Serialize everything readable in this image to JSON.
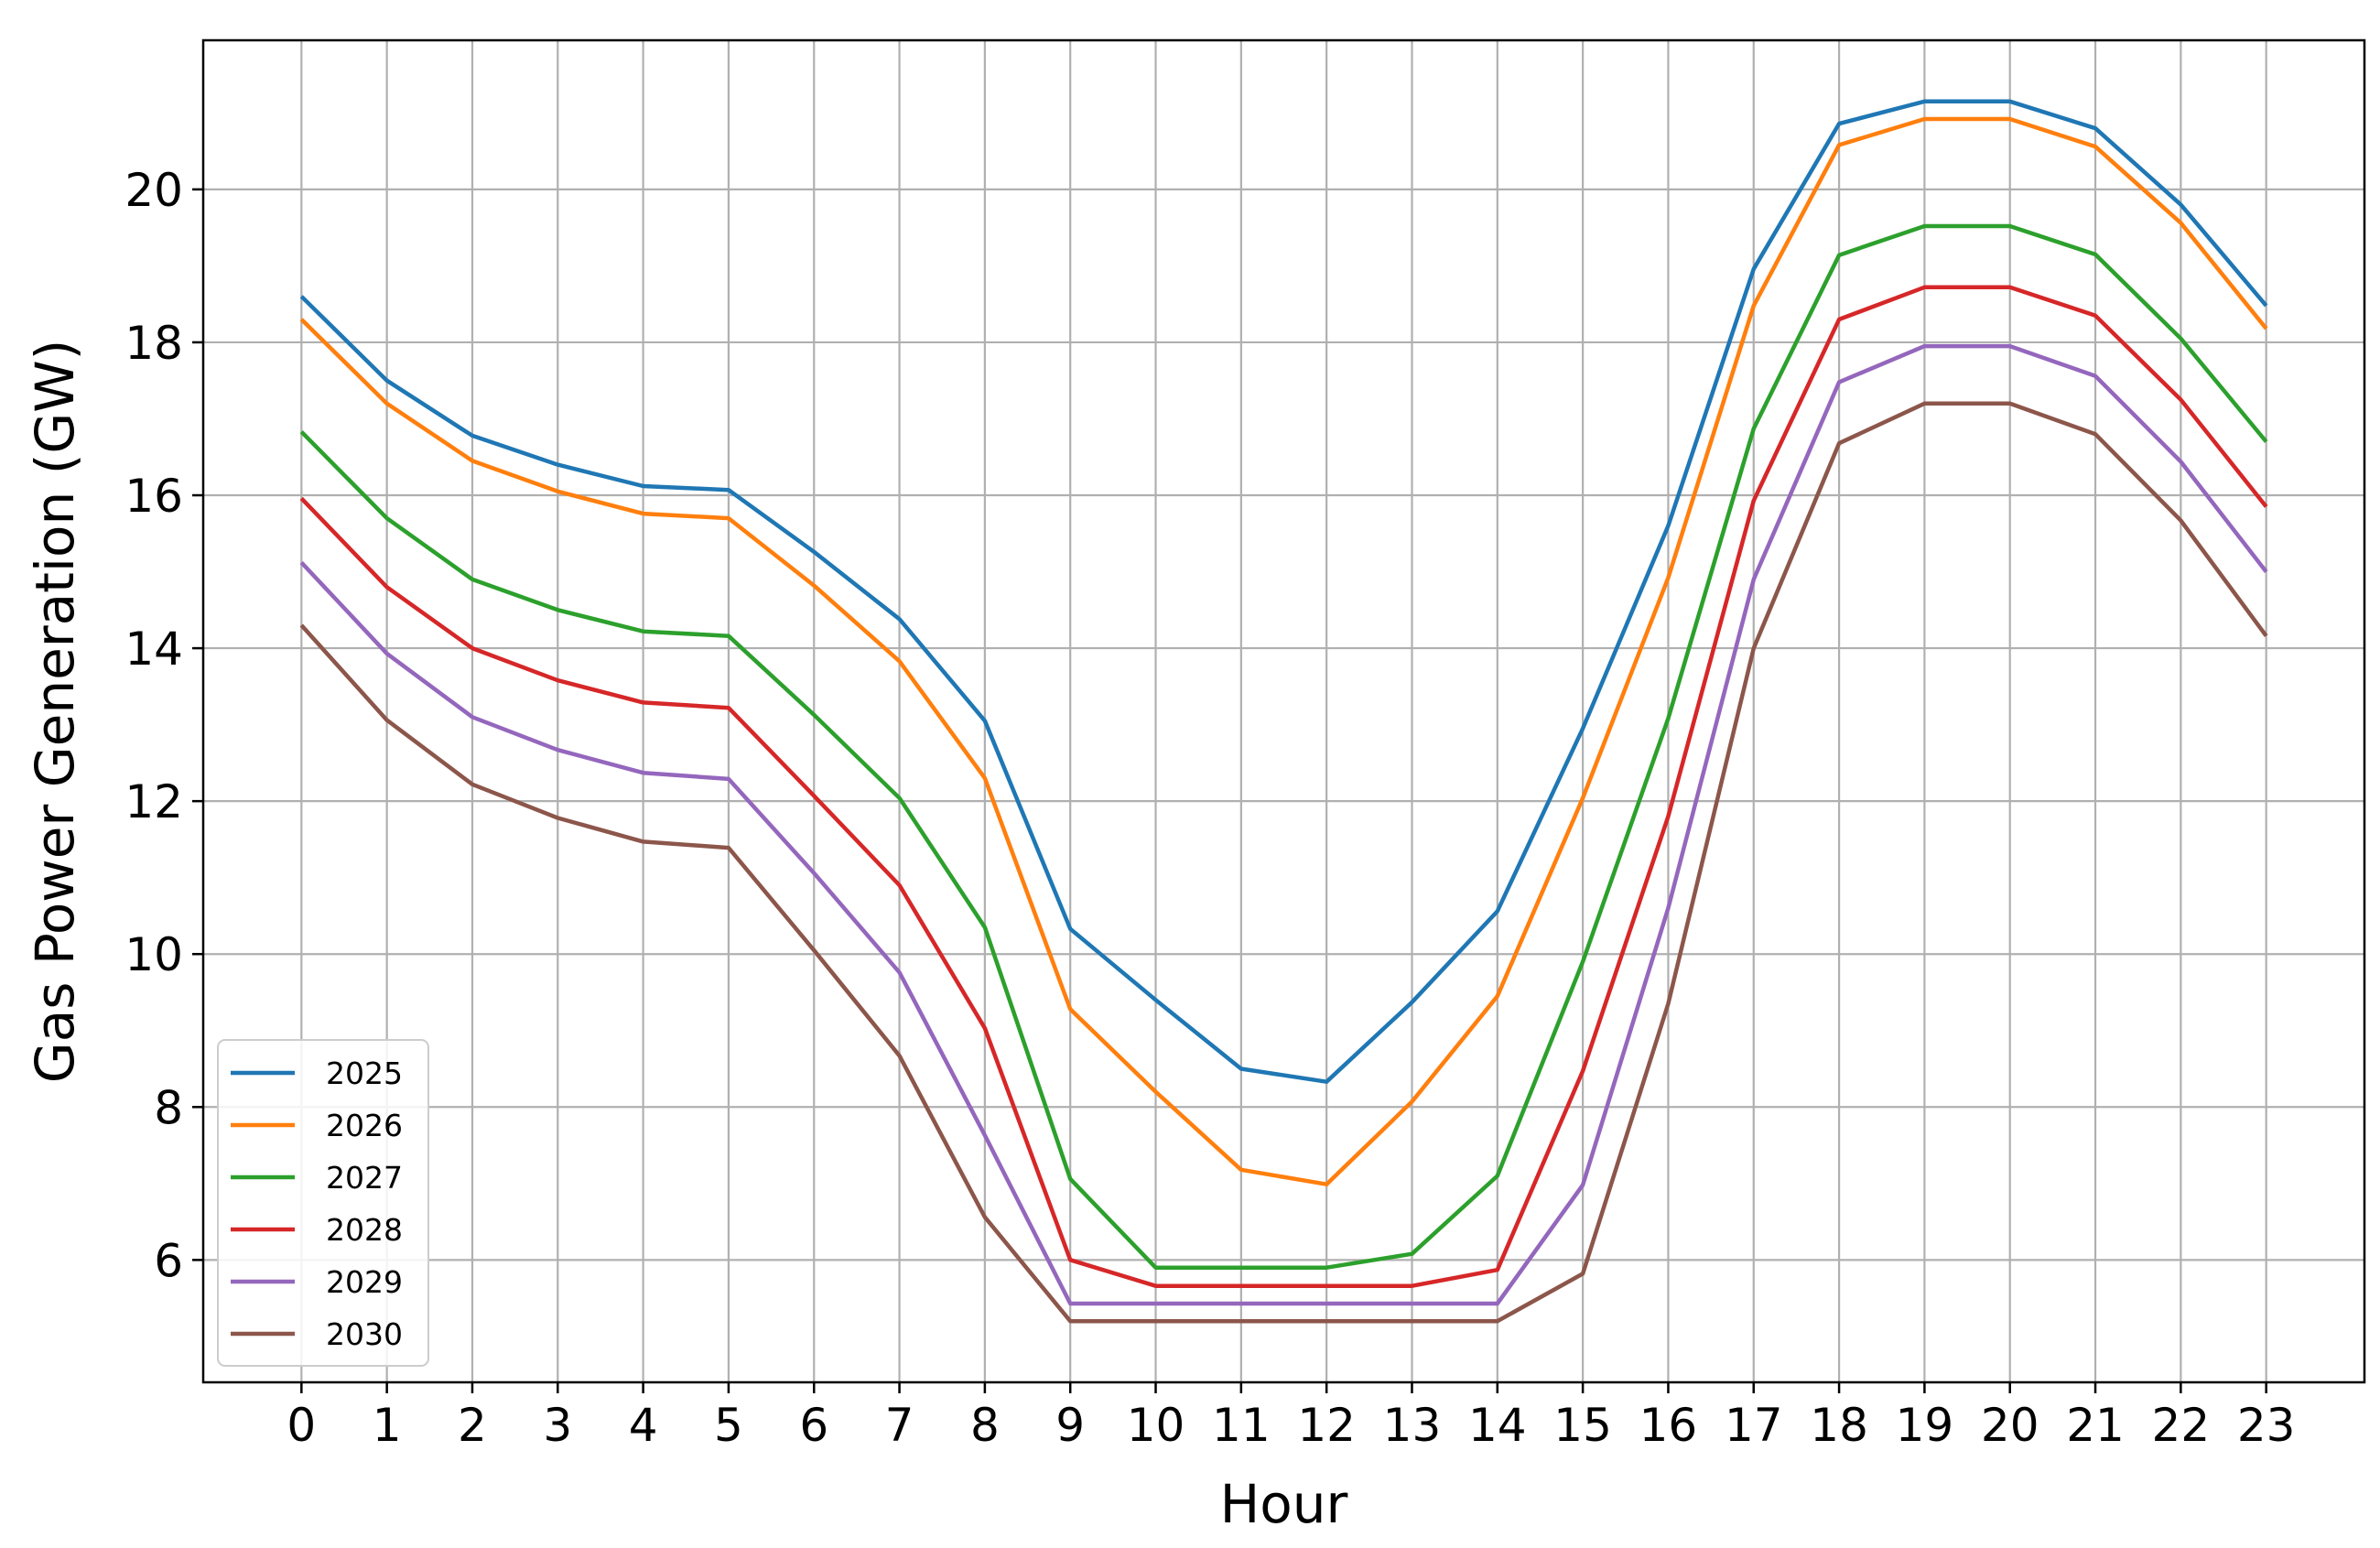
{
  "chart_data": {
    "type": "line",
    "title": "",
    "xlabel": "Hour",
    "ylabel": "Gas Power Generation (GW)",
    "x": [
      0,
      1,
      2,
      3,
      4,
      5,
      6,
      7,
      8,
      9,
      10,
      11,
      12,
      13,
      14,
      15,
      16,
      17,
      18,
      19,
      20,
      21,
      22,
      23
    ],
    "x_ticks": [
      "0",
      "1",
      "2",
      "3",
      "4",
      "5",
      "6",
      "7",
      "8",
      "9",
      "10",
      "11",
      "12",
      "13",
      "14",
      "15",
      "16",
      "17",
      "18",
      "19",
      "20",
      "21",
      "22",
      "23"
    ],
    "y_ticks": [
      "6",
      "8",
      "10",
      "12",
      "14",
      "16",
      "18",
      "20"
    ],
    "xlim": [
      -1.15,
      24.15
    ],
    "ylim": [
      4.4,
      21.95
    ],
    "grid": true,
    "legend_position": "lower-left",
    "series": [
      {
        "name": "2025",
        "color": "#1f77b4",
        "values": [
          18.6,
          17.5,
          16.78,
          16.4,
          16.12,
          16.07,
          15.26,
          14.38,
          13.05,
          10.33,
          9.4,
          8.5,
          8.33,
          9.37,
          10.56,
          12.95,
          15.6,
          18.96,
          20.86,
          21.15,
          21.15,
          20.8,
          19.8,
          18.48
        ]
      },
      {
        "name": "2026",
        "color": "#ff7f0e",
        "values": [
          18.3,
          17.2,
          16.45,
          16.05,
          15.76,
          15.7,
          14.82,
          13.83,
          12.3,
          9.28,
          8.2,
          7.18,
          6.99,
          8.07,
          9.45,
          12.04,
          14.92,
          18.48,
          20.58,
          20.92,
          20.92,
          20.56,
          19.56,
          18.18
        ]
      },
      {
        "name": "2027",
        "color": "#2ca02c",
        "values": [
          16.83,
          15.7,
          14.9,
          14.5,
          14.22,
          14.16,
          13.13,
          12.04,
          10.35,
          7.06,
          5.9,
          5.9,
          5.9,
          6.08,
          7.1,
          9.9,
          13.08,
          16.87,
          19.14,
          19.52,
          19.52,
          19.15,
          18.05,
          16.7
        ]
      },
      {
        "name": "2028",
        "color": "#d62728",
        "values": [
          15.96,
          14.8,
          14.0,
          13.58,
          13.29,
          13.22,
          12.07,
          10.9,
          9.03,
          6.0,
          5.66,
          5.66,
          5.66,
          5.66,
          5.87,
          8.47,
          11.8,
          15.93,
          18.3,
          18.72,
          18.72,
          18.35,
          17.25,
          15.85
        ]
      },
      {
        "name": "2029",
        "color": "#9467bd",
        "values": [
          15.12,
          13.93,
          13.1,
          12.67,
          12.37,
          12.29,
          11.06,
          9.76,
          7.63,
          5.43,
          5.43,
          5.43,
          5.43,
          5.43,
          5.43,
          6.98,
          10.6,
          14.9,
          17.48,
          17.95,
          17.95,
          17.56,
          16.44,
          15.0
        ]
      },
      {
        "name": "2030",
        "color": "#8c564b",
        "values": [
          14.3,
          13.06,
          12.22,
          11.78,
          11.47,
          11.39,
          10.05,
          8.67,
          6.56,
          5.2,
          5.2,
          5.2,
          5.2,
          5.2,
          5.2,
          5.82,
          9.35,
          14.0,
          16.68,
          17.2,
          17.2,
          16.8,
          15.67,
          14.16
        ]
      }
    ]
  }
}
